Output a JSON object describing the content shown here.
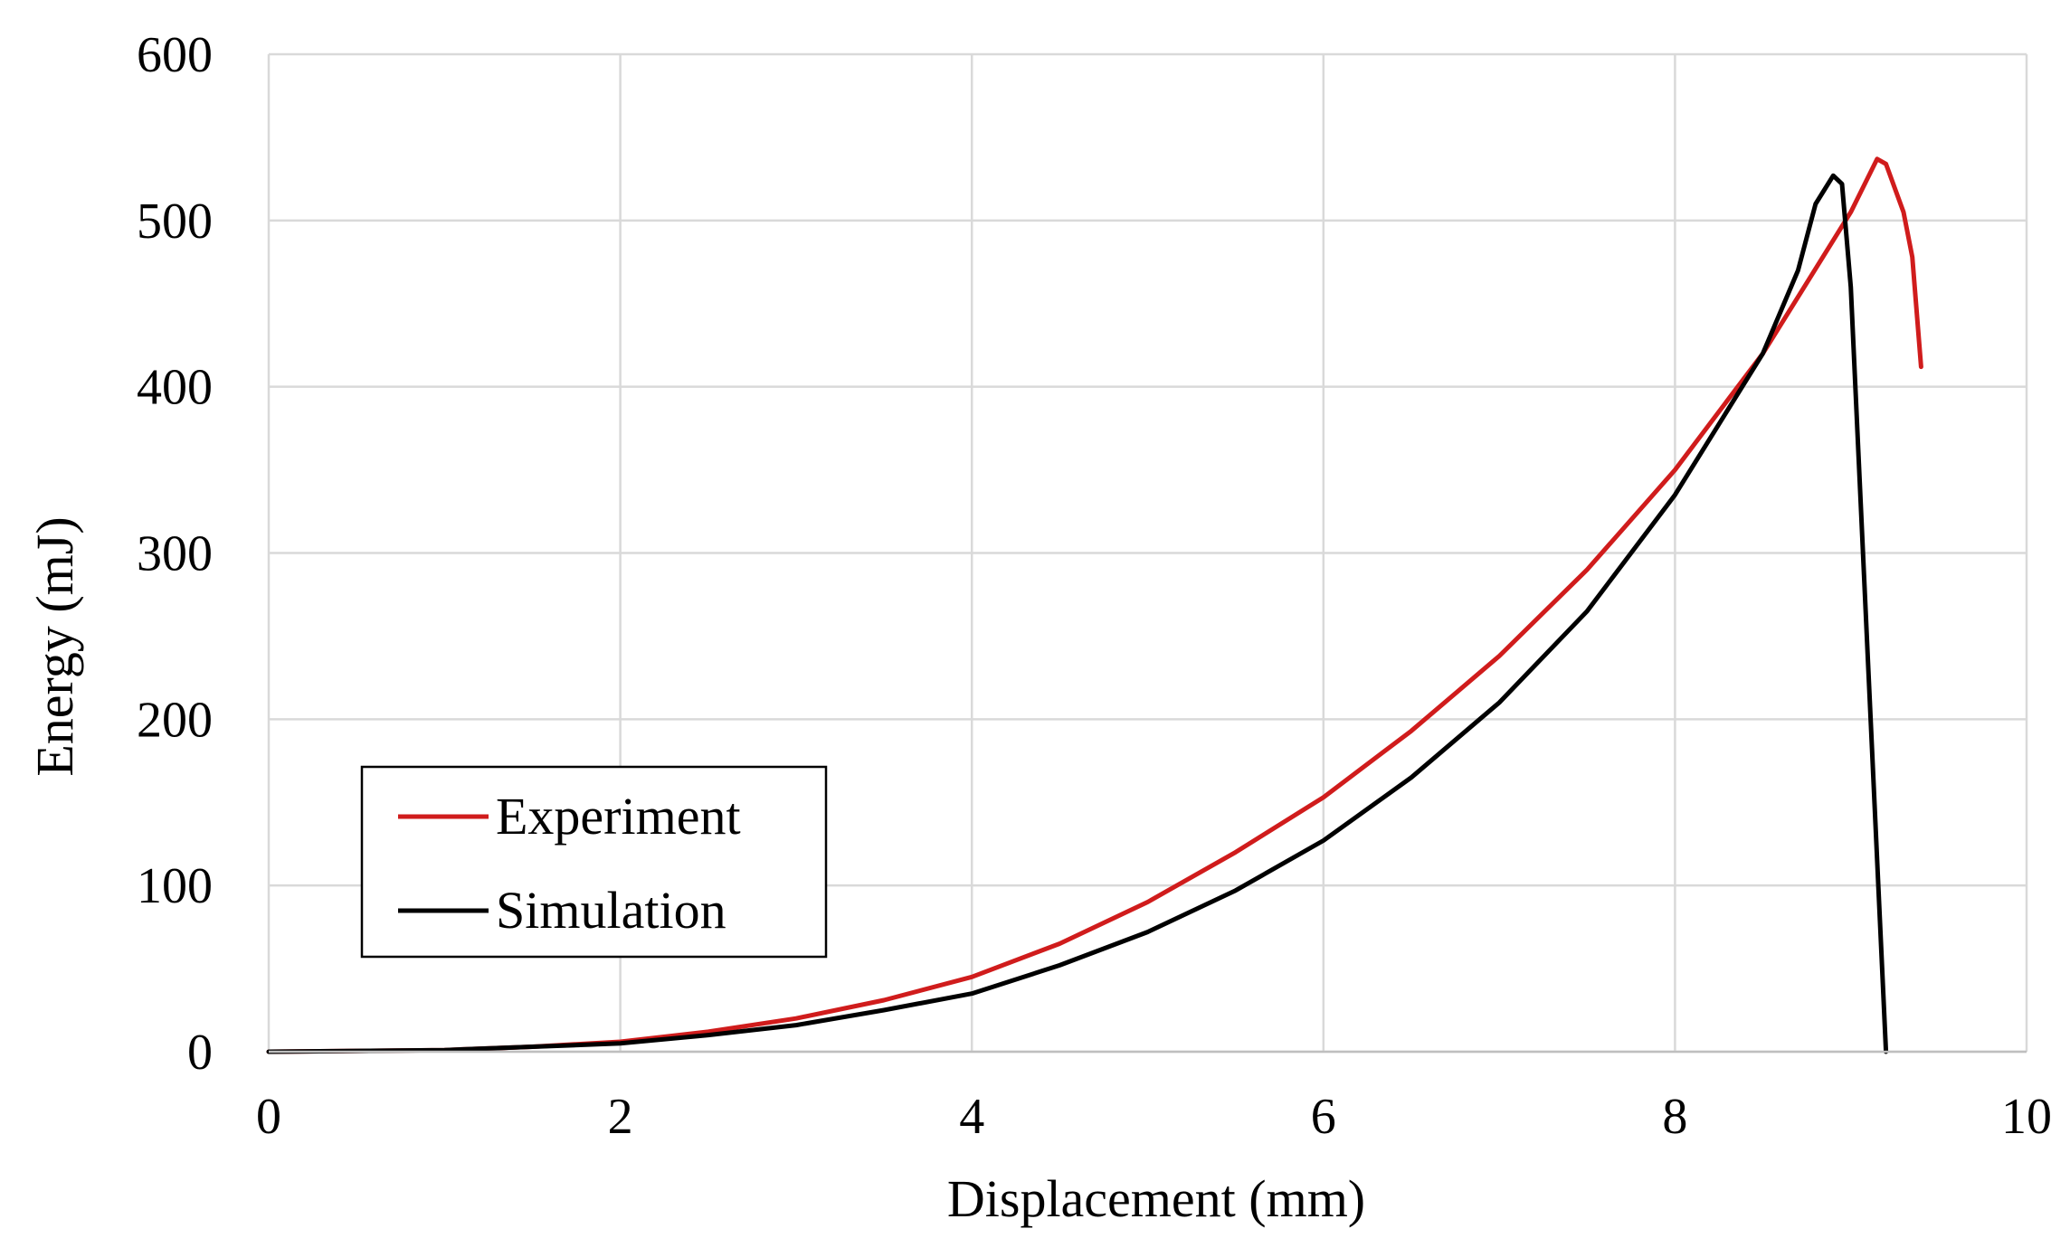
{
  "chart_data": {
    "type": "line",
    "title": "",
    "xlabel": "Displacement (mm)",
    "ylabel": "Energy (mJ)",
    "xlim": [
      0,
      10
    ],
    "ylim": [
      0,
      600
    ],
    "xticks": [
      0,
      2,
      4,
      6,
      8,
      10
    ],
    "yticks": [
      0,
      100,
      200,
      300,
      400,
      500,
      600
    ],
    "grid": true,
    "legend_position": "lower-left",
    "series": [
      {
        "name": "Experiment",
        "color": "#d01c1c",
        "x": [
          0,
          1,
          1.5,
          2,
          2.5,
          3,
          3.5,
          4,
          4.5,
          5,
          5.5,
          6,
          6.5,
          7,
          7.5,
          8,
          8.5,
          9,
          9.15,
          9.2,
          9.3,
          9.35,
          9.4
        ],
        "y": [
          0,
          1,
          3,
          6,
          12,
          20,
          31,
          45,
          65,
          90,
          120,
          153,
          193,
          238,
          290,
          350,
          420,
          505,
          537,
          534,
          505,
          478,
          412
        ]
      },
      {
        "name": "Simulation",
        "color": "#000000",
        "x": [
          0,
          1,
          1.5,
          2,
          2.5,
          3,
          3.5,
          4,
          4.5,
          5,
          5.5,
          6,
          6.5,
          7,
          7.5,
          8,
          8.5,
          8.7,
          8.8,
          8.9,
          8.95,
          9.0,
          9.1,
          9.2
        ],
        "y": [
          0,
          1,
          3,
          5,
          10,
          16,
          25,
          35,
          52,
          72,
          97,
          127,
          165,
          210,
          265,
          335,
          420,
          470,
          510,
          527,
          522,
          460,
          230,
          0
        ]
      }
    ]
  }
}
